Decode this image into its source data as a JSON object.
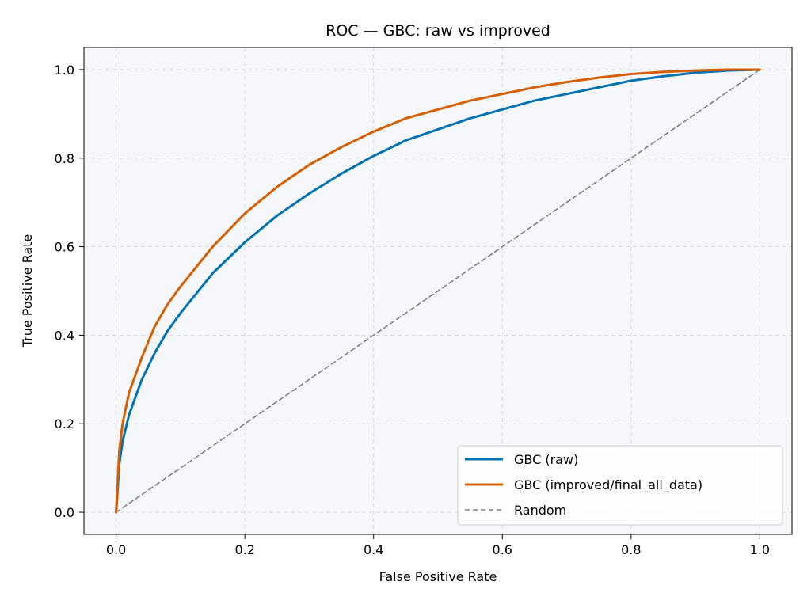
{
  "chart_data": {
    "type": "line",
    "title": "ROC — GBC: raw vs improved",
    "xlabel": "False Positive Rate",
    "ylabel": "True Positive Rate",
    "xlim": [
      -0.05,
      1.05
    ],
    "ylim": [
      -0.05,
      1.05
    ],
    "xticks": [
      0.0,
      0.2,
      0.4,
      0.6,
      0.8,
      1.0
    ],
    "yticks": [
      0.0,
      0.2,
      0.4,
      0.6,
      0.8,
      1.0
    ],
    "xtick_labels": [
      "0.0",
      "0.2",
      "0.4",
      "0.6",
      "0.8",
      "1.0"
    ],
    "ytick_labels": [
      "0.0",
      "0.2",
      "0.4",
      "0.6",
      "0.8",
      "1.0"
    ],
    "grid": true,
    "legend_position": "lower-right",
    "plot_background": "#f5f7fb",
    "series": [
      {
        "name": "GBC (raw)",
        "color": "#0072b2",
        "style": "solid",
        "x": [
          0.0,
          0.005,
          0.01,
          0.02,
          0.04,
          0.06,
          0.08,
          0.1,
          0.15,
          0.2,
          0.25,
          0.3,
          0.35,
          0.4,
          0.45,
          0.5,
          0.55,
          0.6,
          0.65,
          0.7,
          0.75,
          0.8,
          0.85,
          0.9,
          0.95,
          1.0
        ],
        "y": [
          0.0,
          0.11,
          0.16,
          0.22,
          0.3,
          0.36,
          0.41,
          0.45,
          0.54,
          0.61,
          0.67,
          0.72,
          0.765,
          0.805,
          0.84,
          0.865,
          0.89,
          0.91,
          0.93,
          0.945,
          0.96,
          0.975,
          0.985,
          0.993,
          0.998,
          1.0
        ]
      },
      {
        "name": "GBC (improved/final_all_data)",
        "color": "#d55e00",
        "style": "solid",
        "x": [
          0.0,
          0.005,
          0.01,
          0.02,
          0.04,
          0.06,
          0.08,
          0.1,
          0.15,
          0.2,
          0.25,
          0.3,
          0.35,
          0.4,
          0.45,
          0.5,
          0.55,
          0.6,
          0.65,
          0.7,
          0.75,
          0.8,
          0.85,
          0.9,
          0.95,
          1.0
        ],
        "y": [
          0.0,
          0.14,
          0.2,
          0.27,
          0.35,
          0.42,
          0.47,
          0.51,
          0.6,
          0.675,
          0.735,
          0.785,
          0.825,
          0.86,
          0.89,
          0.91,
          0.93,
          0.945,
          0.96,
          0.972,
          0.982,
          0.99,
          0.995,
          0.998,
          1.0,
          1.0
        ]
      },
      {
        "name": "Random",
        "color": "#808080",
        "style": "dashed",
        "x": [
          0.0,
          1.0
        ],
        "y": [
          0.0,
          1.0
        ]
      }
    ]
  }
}
